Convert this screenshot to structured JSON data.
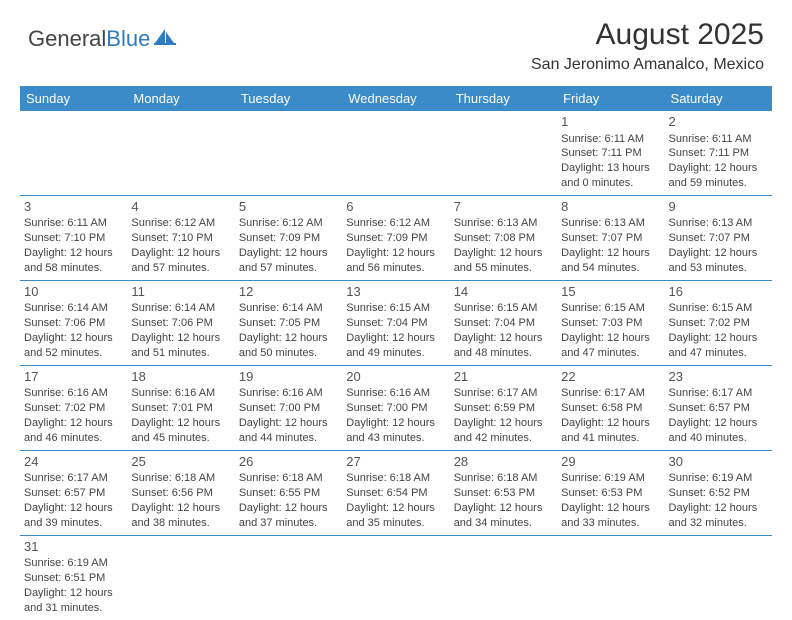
{
  "logo": {
    "word1": "General",
    "word2": "Blue"
  },
  "title": "August 2025",
  "location": "San Jeronimo Amanalco, Mexico",
  "colors": {
    "header_bg": "#3b8bc9",
    "header_text": "#ffffff",
    "cell_border": "#3b8bc9",
    "text": "#444",
    "logo_accent": "#2f7bbf"
  },
  "day_headers": [
    "Sunday",
    "Monday",
    "Tuesday",
    "Wednesday",
    "Thursday",
    "Friday",
    "Saturday"
  ],
  "weeks": [
    [
      null,
      null,
      null,
      null,
      null,
      {
        "n": "1",
        "sr": "6:11 AM",
        "ss": "7:11 PM",
        "dl": "13 hours and 0 minutes."
      },
      {
        "n": "2",
        "sr": "6:11 AM",
        "ss": "7:11 PM",
        "dl": "12 hours and 59 minutes."
      }
    ],
    [
      {
        "n": "3",
        "sr": "6:11 AM",
        "ss": "7:10 PM",
        "dl": "12 hours and 58 minutes."
      },
      {
        "n": "4",
        "sr": "6:12 AM",
        "ss": "7:10 PM",
        "dl": "12 hours and 57 minutes."
      },
      {
        "n": "5",
        "sr": "6:12 AM",
        "ss": "7:09 PM",
        "dl": "12 hours and 57 minutes."
      },
      {
        "n": "6",
        "sr": "6:12 AM",
        "ss": "7:09 PM",
        "dl": "12 hours and 56 minutes."
      },
      {
        "n": "7",
        "sr": "6:13 AM",
        "ss": "7:08 PM",
        "dl": "12 hours and 55 minutes."
      },
      {
        "n": "8",
        "sr": "6:13 AM",
        "ss": "7:07 PM",
        "dl": "12 hours and 54 minutes."
      },
      {
        "n": "9",
        "sr": "6:13 AM",
        "ss": "7:07 PM",
        "dl": "12 hours and 53 minutes."
      }
    ],
    [
      {
        "n": "10",
        "sr": "6:14 AM",
        "ss": "7:06 PM",
        "dl": "12 hours and 52 minutes."
      },
      {
        "n": "11",
        "sr": "6:14 AM",
        "ss": "7:06 PM",
        "dl": "12 hours and 51 minutes."
      },
      {
        "n": "12",
        "sr": "6:14 AM",
        "ss": "7:05 PM",
        "dl": "12 hours and 50 minutes."
      },
      {
        "n": "13",
        "sr": "6:15 AM",
        "ss": "7:04 PM",
        "dl": "12 hours and 49 minutes."
      },
      {
        "n": "14",
        "sr": "6:15 AM",
        "ss": "7:04 PM",
        "dl": "12 hours and 48 minutes."
      },
      {
        "n": "15",
        "sr": "6:15 AM",
        "ss": "7:03 PM",
        "dl": "12 hours and 47 minutes."
      },
      {
        "n": "16",
        "sr": "6:15 AM",
        "ss": "7:02 PM",
        "dl": "12 hours and 47 minutes."
      }
    ],
    [
      {
        "n": "17",
        "sr": "6:16 AM",
        "ss": "7:02 PM",
        "dl": "12 hours and 46 minutes."
      },
      {
        "n": "18",
        "sr": "6:16 AM",
        "ss": "7:01 PM",
        "dl": "12 hours and 45 minutes."
      },
      {
        "n": "19",
        "sr": "6:16 AM",
        "ss": "7:00 PM",
        "dl": "12 hours and 44 minutes."
      },
      {
        "n": "20",
        "sr": "6:16 AM",
        "ss": "7:00 PM",
        "dl": "12 hours and 43 minutes."
      },
      {
        "n": "21",
        "sr": "6:17 AM",
        "ss": "6:59 PM",
        "dl": "12 hours and 42 minutes."
      },
      {
        "n": "22",
        "sr": "6:17 AM",
        "ss": "6:58 PM",
        "dl": "12 hours and 41 minutes."
      },
      {
        "n": "23",
        "sr": "6:17 AM",
        "ss": "6:57 PM",
        "dl": "12 hours and 40 minutes."
      }
    ],
    [
      {
        "n": "24",
        "sr": "6:17 AM",
        "ss": "6:57 PM",
        "dl": "12 hours and 39 minutes."
      },
      {
        "n": "25",
        "sr": "6:18 AM",
        "ss": "6:56 PM",
        "dl": "12 hours and 38 minutes."
      },
      {
        "n": "26",
        "sr": "6:18 AM",
        "ss": "6:55 PM",
        "dl": "12 hours and 37 minutes."
      },
      {
        "n": "27",
        "sr": "6:18 AM",
        "ss": "6:54 PM",
        "dl": "12 hours and 35 minutes."
      },
      {
        "n": "28",
        "sr": "6:18 AM",
        "ss": "6:53 PM",
        "dl": "12 hours and 34 minutes."
      },
      {
        "n": "29",
        "sr": "6:19 AM",
        "ss": "6:53 PM",
        "dl": "12 hours and 33 minutes."
      },
      {
        "n": "30",
        "sr": "6:19 AM",
        "ss": "6:52 PM",
        "dl": "12 hours and 32 minutes."
      }
    ],
    [
      {
        "n": "31",
        "sr": "6:19 AM",
        "ss": "6:51 PM",
        "dl": "12 hours and 31 minutes."
      },
      null,
      null,
      null,
      null,
      null,
      null
    ]
  ],
  "labels": {
    "sunrise": "Sunrise:",
    "sunset": "Sunset:",
    "daylight": "Daylight:"
  }
}
